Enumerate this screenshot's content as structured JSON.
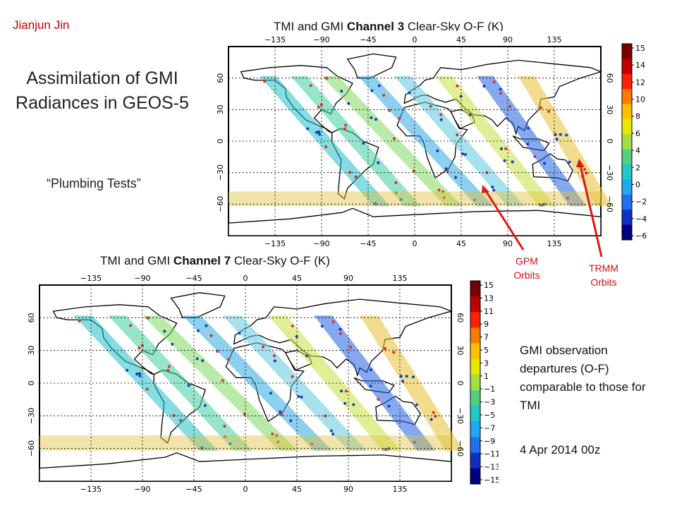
{
  "author": "Jianjun Jin",
  "title": "Assimilation of GMI Radiances in GEOS-5",
  "subtitle": "“Plumbing Tests”",
  "map1": {
    "title_prefix": "TMI and GMI ",
    "title_bold": "Channel 3",
    "title_suffix": " Clear-Sky O-F (K)",
    "lon_ticks": [
      "−135",
      "−90",
      "−45",
      "0",
      "45",
      "90",
      "135"
    ],
    "lat_ticks": [
      "60",
      "30",
      "0",
      "−30",
      "−60"
    ],
    "colorbar_ticks": [
      "15",
      "14",
      "12",
      "10",
      "8",
      "6",
      "4",
      "2",
      "0",
      "−2",
      "−4",
      "−6"
    ]
  },
  "map2": {
    "title_prefix": "TMI and GMI ",
    "title_bold": "Channel 7",
    "title_suffix": " Clear-Sky O-F (K)",
    "lon_ticks": [
      "−135",
      "−90",
      "−45",
      "0",
      "45",
      "90",
      "135"
    ],
    "lat_ticks": [
      "60",
      "30",
      "0",
      "−30",
      "−60"
    ],
    "colorbar_ticks": [
      "15",
      "13",
      "11",
      "9",
      "7",
      "5",
      "3",
      "1",
      "−1",
      "−3",
      "−5",
      "−7",
      "−9",
      "−11",
      "−13",
      "−15"
    ]
  },
  "annotations": {
    "gpm": "GPM Orbits",
    "trmm": "TRMM Orbits",
    "arrow_color": "#e01818"
  },
  "note": "GMI observation departures (O-F) comparable to those for TMI",
  "date": "4 Apr 2014 00z",
  "colors": {
    "title_text": "#1f1f1f",
    "author": "#c00000",
    "colorbar": [
      "#7a0000",
      "#c00000",
      "#ff2000",
      "#ff7a00",
      "#ffc000",
      "#e8e800",
      "#a0e040",
      "#50d080",
      "#20c8c8",
      "#20a8f0",
      "#2070f0",
      "#1030c0",
      "#000080"
    ]
  }
}
